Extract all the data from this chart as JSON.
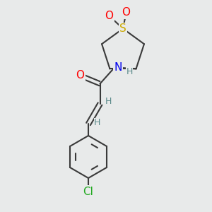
{
  "bg_color": "#e8eaea",
  "bond_color": "#3a3a3a",
  "bond_width": 1.5,
  "atom_colors": {
    "O": "#ff0000",
    "N": "#0000ee",
    "S": "#ccaa00",
    "Cl": "#22aa22",
    "C": "#3a3a3a",
    "H": "#5a8a8a"
  },
  "font_size_atom": 11,
  "font_size_h": 9,
  "font_size_cl": 11
}
